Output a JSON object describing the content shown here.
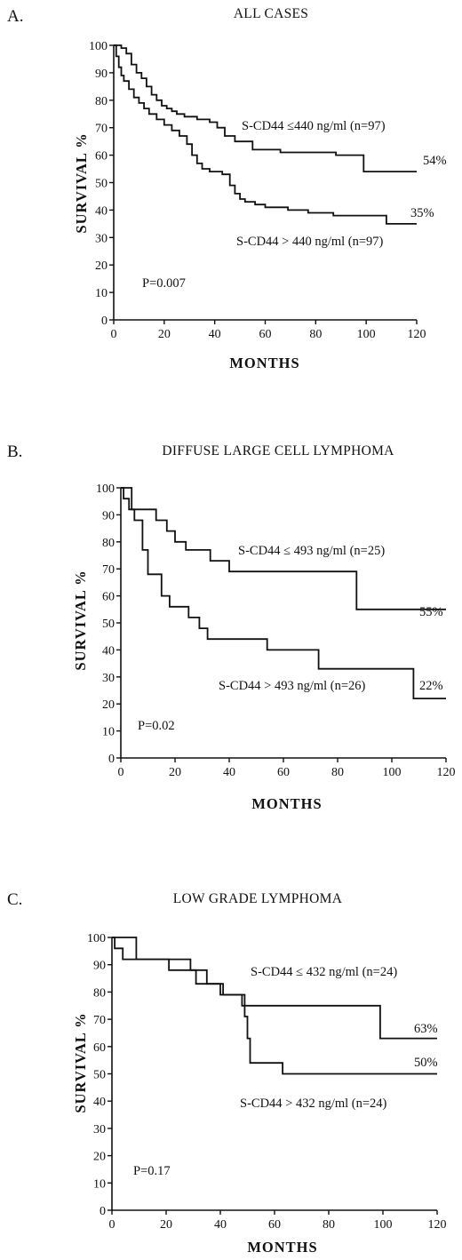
{
  "chart_data": [
    {
      "type": "line",
      "panel_letter": "A.",
      "title": "ALL CASES",
      "xlabel": "MONTHS",
      "ylabel": "SURVIVAL %",
      "xlim": [
        0,
        120
      ],
      "ylim": [
        0,
        100
      ],
      "xticks": [
        0,
        20,
        40,
        60,
        80,
        100,
        120
      ],
      "yticks": [
        0,
        10,
        20,
        30,
        40,
        50,
        60,
        70,
        80,
        90,
        100
      ],
      "series": [
        {
          "name": "S-CD44 ≤440 ng/ml (n=97)",
          "x": [
            0,
            3,
            5,
            7,
            9,
            11,
            13,
            15,
            17,
            19,
            21,
            23,
            25,
            28,
            33,
            38,
            41,
            44,
            48,
            55,
            66,
            75,
            88,
            99,
            120
          ],
          "y": [
            100,
            99,
            97,
            93,
            90,
            88,
            85,
            82,
            80,
            78,
            77,
            76,
            75,
            74,
            73,
            72,
            70,
            67,
            65,
            62,
            61,
            61,
            60,
            54,
            54
          ]
        },
        {
          "name": "S-CD44 > 440 ng/ml (n=97)",
          "x": [
            0,
            1,
            2,
            3,
            4,
            6,
            8,
            10,
            12,
            14,
            17,
            20,
            23,
            26,
            29,
            31,
            33,
            35,
            38,
            43,
            46,
            48,
            50,
            52,
            56,
            60,
            69,
            77,
            87,
            97,
            108,
            120
          ],
          "y": [
            100,
            96,
            92,
            89,
            87,
            84,
            81,
            79,
            77,
            75,
            73,
            71,
            69,
            67,
            64,
            60,
            57,
            55,
            54,
            53,
            49,
            46,
            44,
            43,
            42,
            41,
            40,
            39,
            38,
            38,
            35,
            35
          ]
        }
      ],
      "annotations": {
        "upper_label": "S-CD44 ≤440 ng/ml (n=97)",
        "lower_label": "S-CD44 > 440 ng/ml (n=97)",
        "upper_end": "54%",
        "lower_end": "35%",
        "pvalue": "P=0.007"
      }
    },
    {
      "type": "line",
      "panel_letter": "B.",
      "title": "DIFFUSE LARGE CELL LYMPHOMA",
      "xlabel": "MONTHS",
      "ylabel": "SURVIVAL %",
      "xlim": [
        0,
        120
      ],
      "ylim": [
        0,
        100
      ],
      "xticks": [
        0,
        20,
        40,
        60,
        80,
        100,
        120
      ],
      "yticks": [
        0,
        10,
        20,
        30,
        40,
        50,
        60,
        70,
        80,
        90,
        100
      ],
      "series": [
        {
          "name": "S-CD44 ≤ 493 ng/ml (n=25)",
          "x": [
            0,
            4,
            4,
            13,
            13,
            17,
            17,
            20,
            20,
            24,
            24,
            33,
            33,
            40,
            40,
            87,
            87,
            120
          ],
          "y": [
            100,
            100,
            92,
            92,
            88,
            88,
            84,
            84,
            80,
            80,
            77,
            77,
            73,
            73,
            69,
            69,
            55,
            55
          ],
          "stepped": false
        },
        {
          "name": "S-CD44 > 493 ng/ml (n=26)",
          "x": [
            0,
            1,
            1,
            3,
            3,
            5,
            5,
            8,
            8,
            10,
            10,
            15,
            15,
            18,
            18,
            25,
            25,
            29,
            29,
            32,
            32,
            54,
            54,
            73,
            73,
            108,
            108,
            120
          ],
          "y": [
            100,
            100,
            96,
            96,
            92,
            92,
            88,
            88,
            77,
            77,
            68,
            68,
            60,
            60,
            56,
            56,
            52,
            52,
            48,
            48,
            44,
            44,
            40,
            40,
            33,
            33,
            22,
            22
          ],
          "stepped": false
        }
      ],
      "annotations": {
        "upper_label": "S-CD44 ≤ 493 ng/ml (n=25)",
        "lower_label": "S-CD44 > 493 ng/ml (n=26)",
        "upper_end": "55%",
        "lower_end": "22%",
        "pvalue": "P=0.02"
      }
    },
    {
      "type": "line",
      "panel_letter": "C.",
      "title": "LOW GRADE LYMPHOMA",
      "xlabel": "MONTHS",
      "ylabel": "SURVIVAL %",
      "xlim": [
        0,
        120
      ],
      "ylim": [
        0,
        100
      ],
      "xticks": [
        0,
        20,
        40,
        60,
        80,
        100,
        120
      ],
      "yticks": [
        0,
        10,
        20,
        30,
        40,
        50,
        60,
        70,
        80,
        90,
        100
      ],
      "series": [
        {
          "name": "S-CD44 ≤ 432 ng/ml (n=24)",
          "x": [
            0,
            9,
            9,
            29,
            29,
            35,
            35,
            41,
            41,
            49,
            49,
            60,
            60,
            99,
            99,
            120
          ],
          "y": [
            100,
            100,
            92,
            92,
            88,
            88,
            83,
            83,
            79,
            79,
            75,
            75,
            75,
            75,
            63,
            63
          ],
          "stepped": false
        },
        {
          "name": "S-CD44 > 432 ng/ml (n=24)",
          "x": [
            0,
            1,
            1,
            4,
            4,
            21,
            21,
            31,
            31,
            40,
            40,
            48,
            48,
            49,
            49,
            50,
            50,
            51,
            51,
            63,
            63,
            120
          ],
          "y": [
            100,
            100,
            96,
            96,
            92,
            92,
            88,
            88,
            83,
            83,
            79,
            79,
            75,
            75,
            71,
            71,
            63,
            63,
            54,
            54,
            50,
            50
          ],
          "stepped": false
        }
      ],
      "annotations": {
        "upper_label": "S-CD44 ≤ 432 ng/ml (n=24)",
        "lower_label": "S-CD44 > 432 ng/ml (n=24)",
        "upper_end": "63%",
        "lower_end": "50%",
        "pvalue": "P=0.17"
      }
    }
  ]
}
